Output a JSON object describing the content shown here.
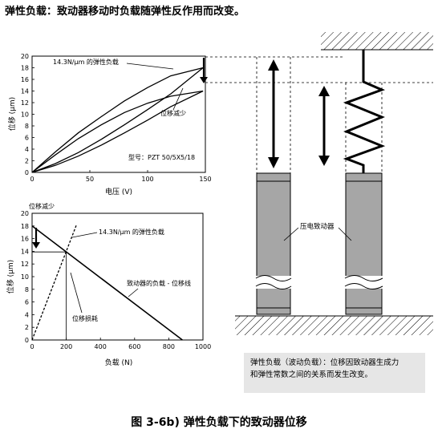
{
  "title": "弹性负载：致动器移动时负载随弹性反作用而改变。",
  "caption": "图 3-6b) 弹性负载下的致动器位移",
  "note": {
    "line1": "弹性负载（波动负载）：位移因致动器生成力",
    "line2": "和弹性常数之间的关系而发生改变。"
  },
  "chart_data": [
    {
      "type": "line",
      "title": "",
      "xlabel": "电压 (V)",
      "ylabel": "位移 (μm)",
      "xlim": [
        0,
        150
      ],
      "ylim": [
        0,
        20
      ],
      "x_ticks": [
        "0",
        "50",
        "100",
        "150"
      ],
      "y_ticks": [
        "0",
        "2",
        "4",
        "6",
        "8",
        "10",
        "12",
        "14",
        "16",
        "18",
        "20"
      ],
      "series": [
        {
          "x": [
            0,
            20,
            40,
            60,
            80,
            100,
            120,
            148
          ],
          "y": [
            0,
            3.5,
            6.8,
            9.6,
            12.3,
            14.6,
            16.6,
            18
          ]
        },
        {
          "x": [
            0,
            20,
            40,
            60,
            80,
            100,
            120,
            148
          ],
          "y": [
            0,
            1.5,
            3.4,
            5.7,
            8.2,
            10.8,
            13.5,
            18
          ]
        },
        {
          "x": [
            0,
            20,
            40,
            60,
            80,
            100,
            120,
            148
          ],
          "y": [
            0,
            3.0,
            5.8,
            8.2,
            10.3,
            11.9,
            13.1,
            14
          ]
        },
        {
          "x": [
            0,
            20,
            40,
            60,
            80,
            100,
            120,
            148
          ],
          "y": [
            0,
            1.2,
            2.8,
            4.7,
            6.8,
            9.0,
            11.3,
            14
          ]
        }
      ],
      "annotations": {
        "stiffness": "14.3N/μm 的弹性负载",
        "reduction": "位移减少",
        "model": "型号：PZT 50/5X5/18"
      }
    },
    {
      "type": "line",
      "title": "",
      "xlabel": "负载 (N)",
      "ylabel": "位移 (μm)",
      "xlim": [
        0,
        1000
      ],
      "ylim": [
        0,
        20
      ],
      "x_ticks": [
        "0",
        "200",
        "400",
        "600",
        "800",
        "1000"
      ],
      "y_ticks": [
        "0",
        "2",
        "4",
        "6",
        "8",
        "10",
        "12",
        "14",
        "16",
        "18",
        "20"
      ],
      "series": [
        {
          "x": [
            0,
            880
          ],
          "y": [
            18,
            0
          ]
        },
        {
          "x": [
            0,
            260
          ],
          "y": [
            0,
            18.2
          ]
        }
      ],
      "annotations": {
        "reduction": "位移减少",
        "stiffness": "14.3N/μm 的弹性负载",
        "load_line": "致动器的负载 - 位移线",
        "loss": "位移损耗"
      }
    }
  ],
  "actuator_label": "压电致动器"
}
